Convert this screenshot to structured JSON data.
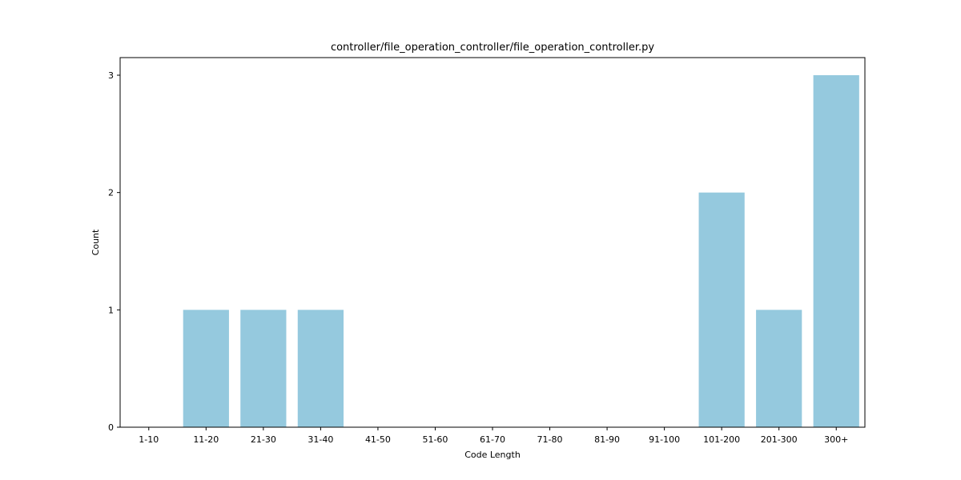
{
  "chart_data": {
    "type": "bar",
    "title": "controller/file_operation_controller/file_operation_controller.py",
    "xlabel": "Code Length",
    "ylabel": "Count",
    "categories": [
      "1-10",
      "11-20",
      "21-30",
      "31-40",
      "41-50",
      "51-60",
      "61-70",
      "71-80",
      "81-90",
      "91-100",
      "101-200",
      "201-300",
      "300+"
    ],
    "values": [
      0,
      1,
      1,
      1,
      0,
      0,
      0,
      0,
      0,
      0,
      2,
      1,
      3
    ],
    "yticks": [
      "0",
      "1",
      "2",
      "3"
    ],
    "ylim": [
      0,
      3.15
    ],
    "grid": false,
    "bar_color": "#95c9de"
  }
}
